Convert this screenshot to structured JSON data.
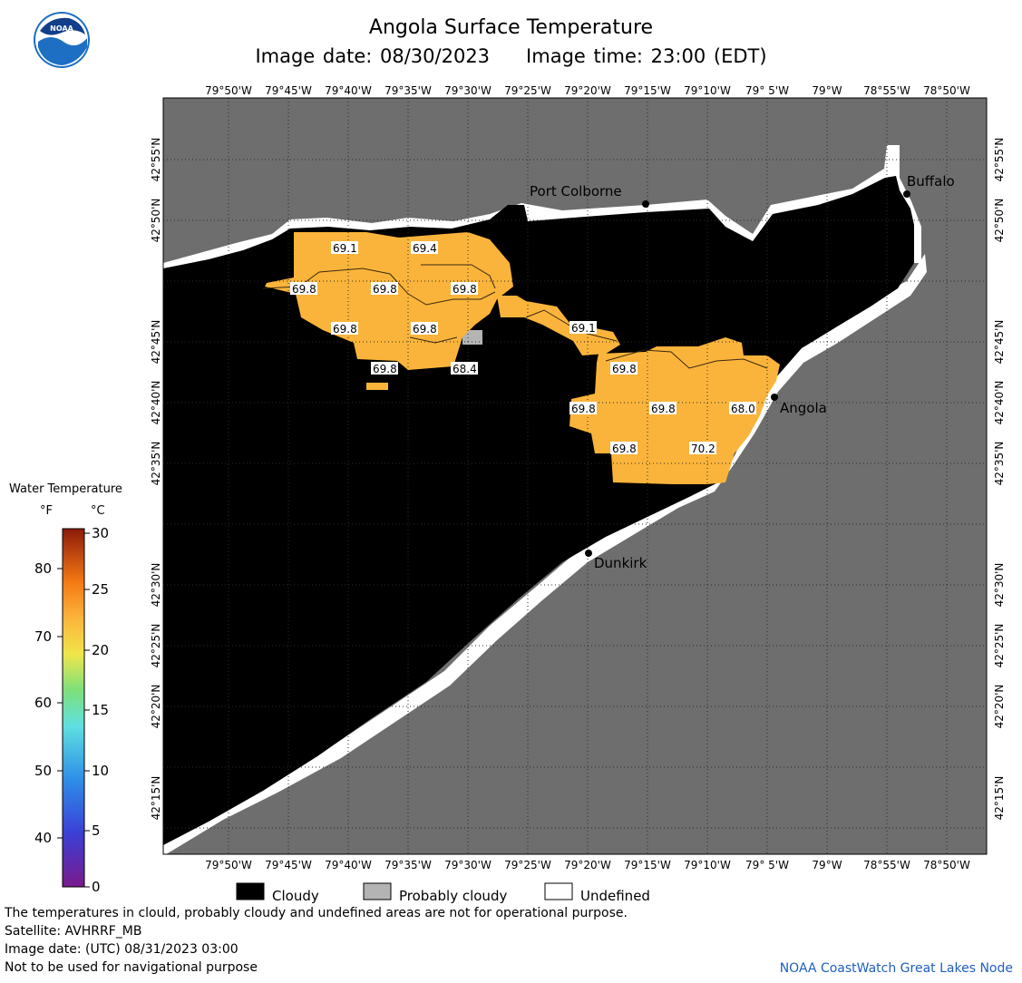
{
  "header": {
    "title": "Angola Surface Temperature",
    "image_date": "Image date: 08/30/2023",
    "image_time": "Image time: 23:00 (EDT)"
  },
  "logo": {
    "text": "NOAA",
    "icon": "noaa-logo"
  },
  "map": {
    "lon_labels": [
      "79°50'W",
      "79°45'W",
      "79°40'W",
      "79°35'W",
      "79°30'W",
      "79°25'W",
      "79°20'W",
      "79°15'W",
      "79°10'W",
      "79° 5'W",
      "79°W",
      "78°55'W",
      "78°50'W"
    ],
    "lat_labels": [
      "42°55'N",
      "42°50'N",
      "42°45'N",
      "42°40'N",
      "42°35'N",
      "42°30'N",
      "42°25'N",
      "42°20'N",
      "42°15'N"
    ],
    "places": [
      {
        "name": "Buffalo"
      },
      {
        "name": "Port Colborne"
      },
      {
        "name": "Angola"
      },
      {
        "name": "Dunkirk"
      }
    ],
    "temperature_labels": [
      "69.1",
      "69.4",
      "69.8",
      "69.8",
      "69.8",
      "69.8",
      "69.8",
      "69.8",
      "68.4",
      "69.1",
      "69.8",
      "69.8",
      "69.8",
      "68.0",
      "69.8",
      "70.2"
    ],
    "colors": {
      "land": "#6e6e6e",
      "cloud": "#000000",
      "water_warm": "#fbb43b",
      "undefined": "#ffffff",
      "probably_cloudy": "#b4b4b4"
    }
  },
  "legend": {
    "title": "Water Temperature",
    "unit_f": "°F",
    "unit_c": "°C",
    "f_ticks": [
      "80",
      "70",
      "60",
      "50",
      "40"
    ],
    "c_ticks": [
      "30",
      "25",
      "20",
      "15",
      "10",
      "5",
      "0"
    ],
    "keys": [
      {
        "label": "Cloudy",
        "color": "#000000"
      },
      {
        "label": "Probably cloudy",
        "color": "#b4b4b4"
      },
      {
        "label": "Undefined",
        "color": "#ffffff"
      }
    ]
  },
  "footer": {
    "note": "The temperatures in clould, probably cloudy and undefined areas are not for operational purpose.",
    "satellite": "Satellite: AVHRRF_MB",
    "utc_date": "Image date: (UTC) 08/31/2023  03:00",
    "nav_warning": "Not to be used for navigational purpose",
    "credit": "NOAA CoastWatch Great Lakes Node"
  }
}
